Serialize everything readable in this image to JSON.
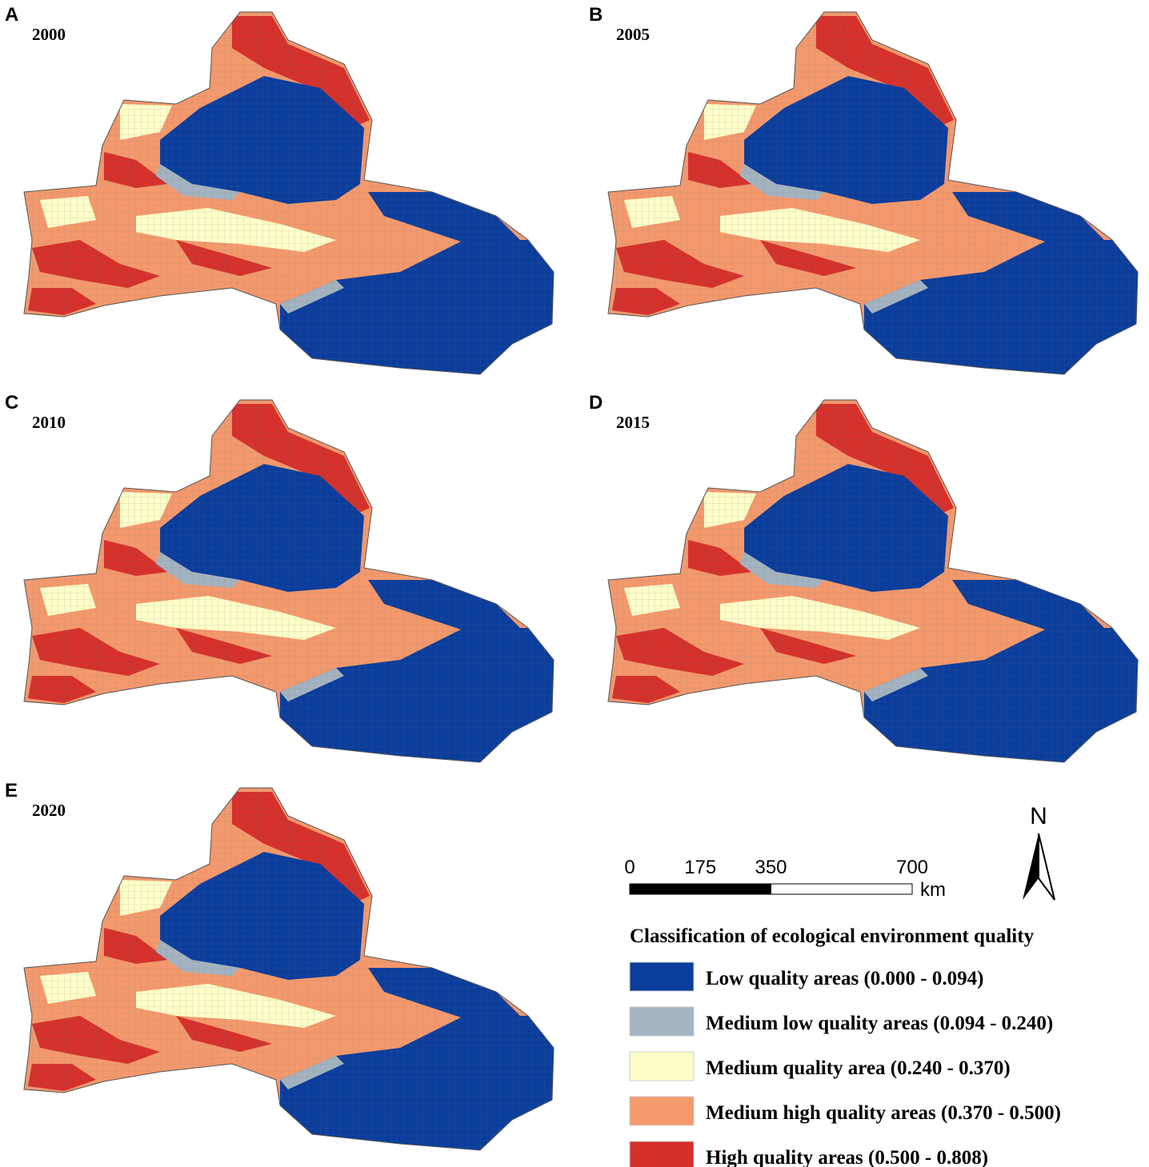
{
  "panels": [
    {
      "letter": "A",
      "year": "2000"
    },
    {
      "letter": "B",
      "year": "2005"
    },
    {
      "letter": "C",
      "year": "2010"
    },
    {
      "letter": "D",
      "year": "2015"
    },
    {
      "letter": "E",
      "year": "2020"
    }
  ],
  "scale_bar": {
    "ticks": [
      0,
      175,
      350,
      700
    ],
    "unit": "km"
  },
  "north_arrow": "N",
  "legend": {
    "title": "Classification of ecological environment quality",
    "items": [
      {
        "label": "Low quality areas (0.000 - 0.094)",
        "color": "#0a3d9c"
      },
      {
        "label": "Medium low quality areas (0.094 - 0.240)",
        "color": "#a4b3c0"
      },
      {
        "label": "Medium quality area (0.240 - 0.370)",
        "color": "#fefec8"
      },
      {
        "label": "Medium high quality areas (0.370 - 0.500)",
        "color": "#f4996c"
      },
      {
        "label": "High quality areas (0.500 - 0.808)",
        "color": "#d6302a"
      }
    ]
  }
}
